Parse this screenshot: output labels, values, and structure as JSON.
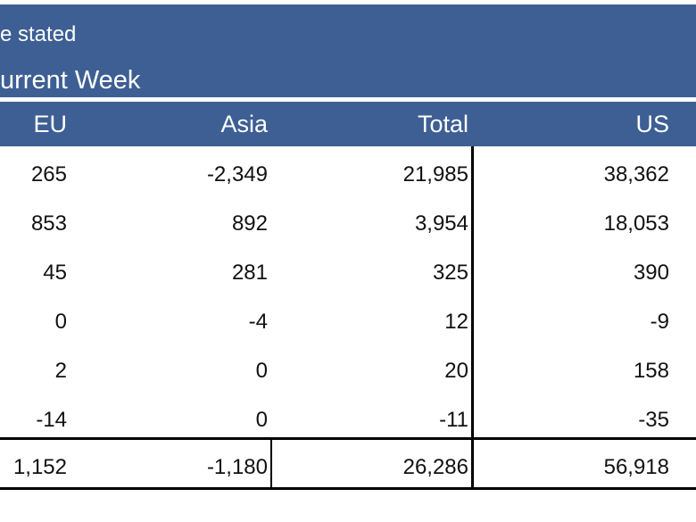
{
  "banner": {
    "note": "e stated",
    "period": "urrent Week"
  },
  "columns": [
    "EU",
    "Asia",
    "Total",
    "US"
  ],
  "rows": [
    {
      "eu": "265",
      "asia": "-2,349",
      "total": "21,985",
      "us": "38,362"
    },
    {
      "eu": "853",
      "asia": "892",
      "total": "3,954",
      "us": "18,053"
    },
    {
      "eu": "45",
      "asia": "281",
      "total": "325",
      "us": "390"
    },
    {
      "eu": "0",
      "asia": "-4",
      "total": "12",
      "us": "-9"
    },
    {
      "eu": "2",
      "asia": "0",
      "total": "20",
      "us": "158"
    },
    {
      "eu": "-14",
      "asia": "0",
      "total": "-11",
      "us": "-35"
    }
  ],
  "totals": {
    "eu": "1,152",
    "asia": "-1,180",
    "total": "26,286",
    "us": "56,918"
  },
  "colors": {
    "header_bg": "#3d5f93",
    "header_text": "#ffffff"
  }
}
